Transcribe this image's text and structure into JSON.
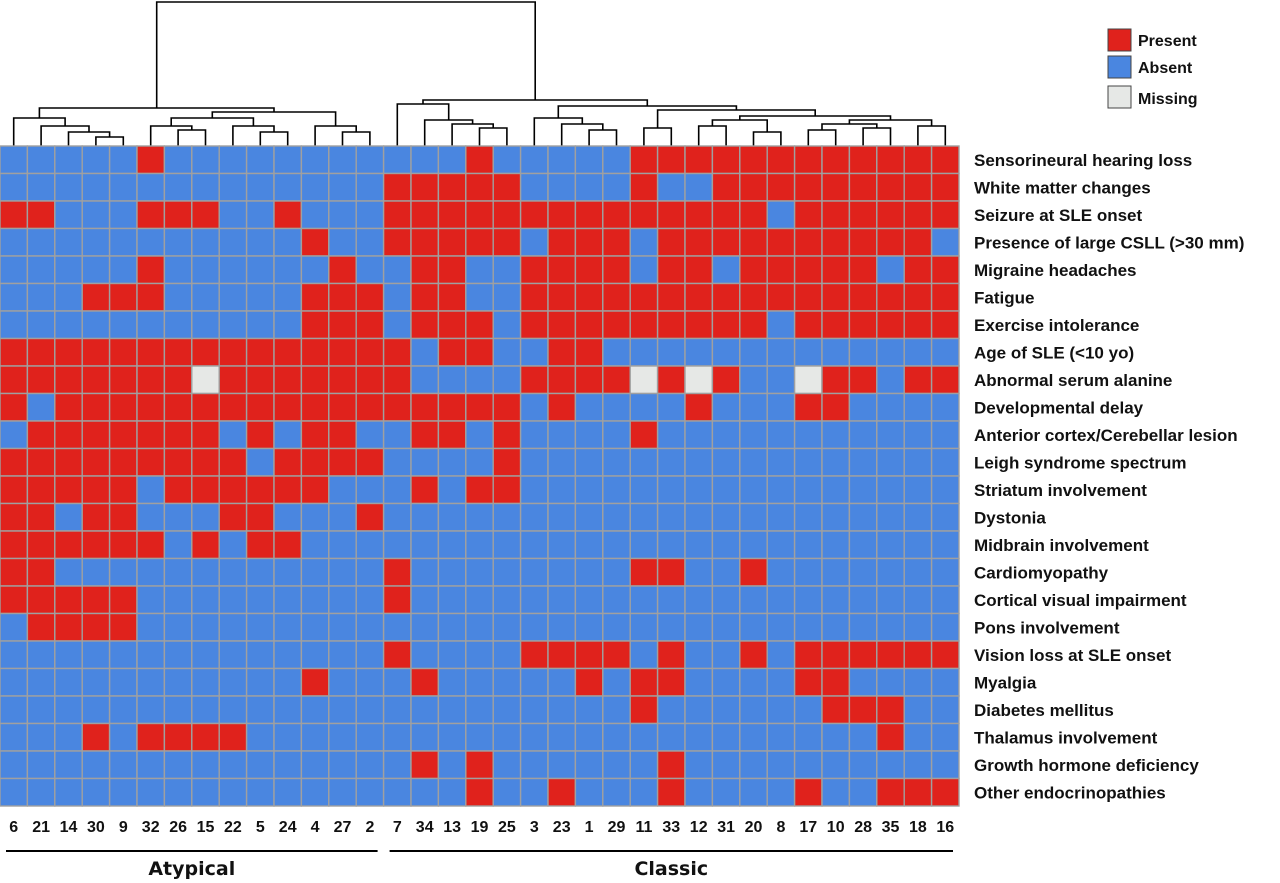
{
  "chart_data": {
    "type": "heatmap",
    "colors": {
      "present": "#e0221c",
      "absent": "#4a86e0",
      "missing": "#e6e8e6",
      "grid": "#a0a0a0"
    },
    "legend": [
      {
        "key": "present",
        "label": "Present"
      },
      {
        "key": "absent",
        "label": "Absent"
      },
      {
        "key": "missing",
        "label": "Missing"
      }
    ],
    "columns": [
      "6",
      "21",
      "14",
      "30",
      "9",
      "32",
      "26",
      "15",
      "22",
      "5",
      "24",
      "4",
      "27",
      "2",
      "7",
      "34",
      "13",
      "19",
      "25",
      "3",
      "23",
      "1",
      "29",
      "11",
      "33",
      "12",
      "31",
      "20",
      "8",
      "17",
      "10",
      "28",
      "35",
      "18",
      "16"
    ],
    "groups": [
      {
        "label": "Atypical",
        "from": 0,
        "to": 13
      },
      {
        "label": "Classic",
        "from": 14,
        "to": 34
      }
    ],
    "rows": [
      "Sensorineural hearing loss",
      "White matter changes",
      "Seizure at SLE onset",
      "Presence of large CSLL (>30 mm)",
      "Migraine headaches",
      "Fatigue",
      "Exercise intolerance",
      "Age of SLE (<10 yo)",
      "Abnormal serum alanine",
      "Developmental delay",
      "Anterior cortex/Cerebellar lesion",
      "Leigh syndrome spectrum",
      "Striatum involvement",
      "Dystonia",
      "Midbrain involvement",
      "Cardiomyopathy",
      "Cortical visual impairment",
      "Pons involvement",
      "Vision loss at SLE onset",
      "Myalgia",
      "Diabetes mellitus",
      "Thalamus involvement",
      "Growth hormone deficiency",
      "Other endocrinopathies"
    ],
    "matrix": [
      "00000100000000000100000111111111111",
      "00000000000000111110000100111111111",
      "11000111001000111111111111110111111",
      "00000000000100111110111011111111110",
      "00000100000010011001111011011111011",
      "00011100000111011001111111111111111",
      "00000000000111011101111111110111111",
      "11111111111111101100110000000000000",
      "11111112111111100001111212100211011",
      "10111111111111111110100001000110000",
      "01111111010110011010000100000000000",
      "11111111101111000010000000000000000",
      "11111011111100010110000000000000000",
      "11011000110001000000000000000000000",
      "11111101011000000000000000000000000",
      "11000000000000100000000110010000000",
      "11111000000000100000000000000000000",
      "01111000000000000000000000000000000",
      "00000000000000100001111010010111111",
      "00000000000100010000010110000110000",
      "00000000000000000000000100000011100",
      "00010111100000000000000000000000100",
      "00000000000000010100000010000000000",
      "00000000000000000100100010000100111"
    ],
    "values_note": "1 = Present, 0 = Absent, 2 = Missing"
  }
}
